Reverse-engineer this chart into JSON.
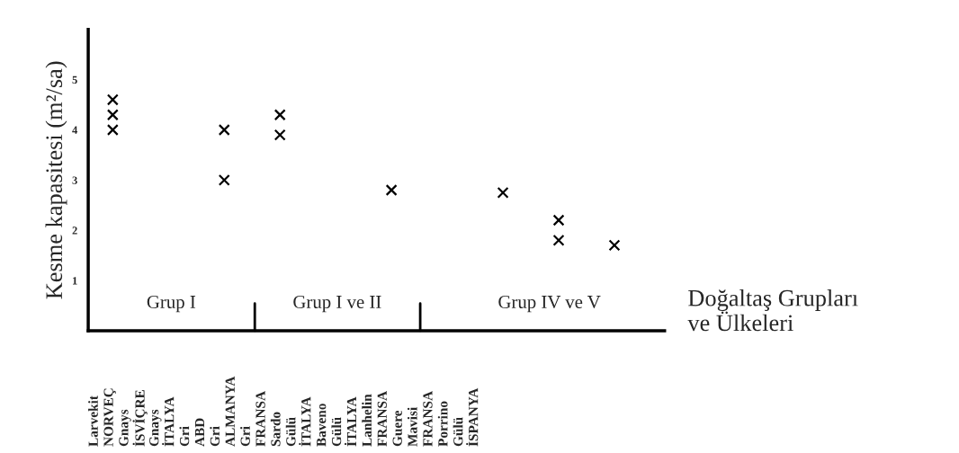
{
  "chart_data": {
    "type": "scatter",
    "xlabel": "Doğaltaş Grupları\nve Ülkeleri",
    "ylabel": "Kesme kapasitesi (m²/sa)",
    "categories": [
      null,
      null,
      null,
      null,
      null,
      null,
      null,
      null,
      null,
      null
    ],
    "series": [
      {
        "color": "#000000",
        "values": [
          4.6,
          null,
          4.0,
          4.3,
          null,
          2.8,
          null,
          2.75,
          2.2,
          1.7
        ]
      },
      {
        "color": "#000000",
        "values": [
          4.3,
          null,
          3.0,
          3.9,
          null,
          null,
          null,
          null,
          1.8,
          null
        ]
      },
      {
        "color": "#000000",
        "values": [
          4.0,
          null,
          null,
          null,
          null,
          null,
          null,
          null,
          null,
          null
        ]
      }
    ],
    "ylim": [
      0,
      6
    ],
    "yticks": [
      1,
      2,
      3,
      4,
      5
    ],
    "tick_labels": "y",
    "grid": false,
    "legend": false,
    "marker": "cross",
    "annotations": [
      "Grup I",
      "Grup I ve II",
      "Grup IV ve V",
      "Larvekit",
      "NORVEÇ",
      "Gnays",
      "İSVİÇRE",
      "Gnays",
      "İTALYA",
      "Gri",
      "ABD",
      "Gri",
      "ALMANYA",
      "Gri",
      "FRANSA",
      "Sardo",
      "Gülü",
      "İTALYA",
      "Baveno",
      "Gülü",
      "İTALYA",
      "Lanhelin",
      "FRANSA",
      "Guere",
      "Mavisi",
      "FRANSA",
      "Porrino",
      "Gülü",
      "İSPANYA"
    ]
  }
}
